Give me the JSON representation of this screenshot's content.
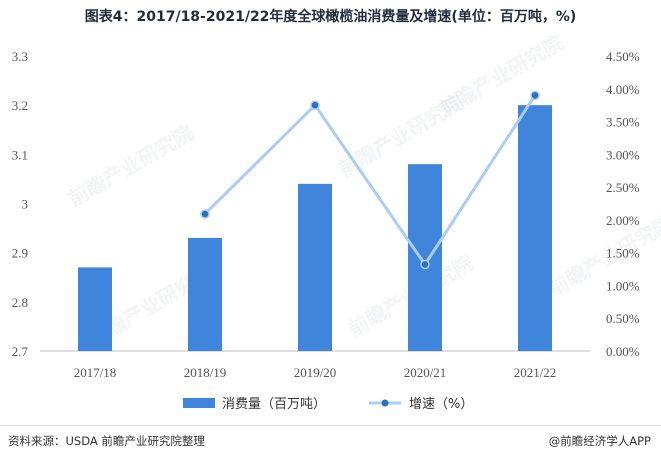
{
  "title": "图表4：2017/18-2021/22年度全球橄榄油消费量及增速(单位：百万吨，%)",
  "source": "资料来源：USDA 前瞻产业研究院整理",
  "brand": "@前瞻经济学人APP",
  "watermark": "前瞻产业研究院",
  "colors": {
    "bar": "#3f85db",
    "line": "#a9cdf3",
    "marker": "#2f6ec0"
  },
  "chart_data": {
    "type": "bar",
    "categories": [
      "2017/18",
      "2018/19",
      "2019/20",
      "2020/21",
      "2021/22"
    ],
    "series": [
      {
        "name": "消费量（百万吨）",
        "type": "bar",
        "axis": "left",
        "values": [
          2.87,
          2.93,
          3.04,
          3.08,
          3.2
        ]
      },
      {
        "name": "增速（%）",
        "type": "line",
        "axis": "right",
        "values": [
          null,
          2.09,
          3.75,
          1.32,
          3.9
        ]
      }
    ],
    "y_left": {
      "min": 2.7,
      "max": 3.3,
      "ticks": [
        "2.7",
        "2.8",
        "2.9",
        "3",
        "3.1",
        "3.2",
        "3.3"
      ]
    },
    "y_right": {
      "min": 0,
      "max": 4.5,
      "ticks": [
        "0.00%",
        "0.50%",
        "1.00%",
        "1.50%",
        "2.00%",
        "2.50%",
        "3.00%",
        "3.50%",
        "4.00%",
        "4.50%"
      ]
    },
    "legend_position": "bottom"
  }
}
